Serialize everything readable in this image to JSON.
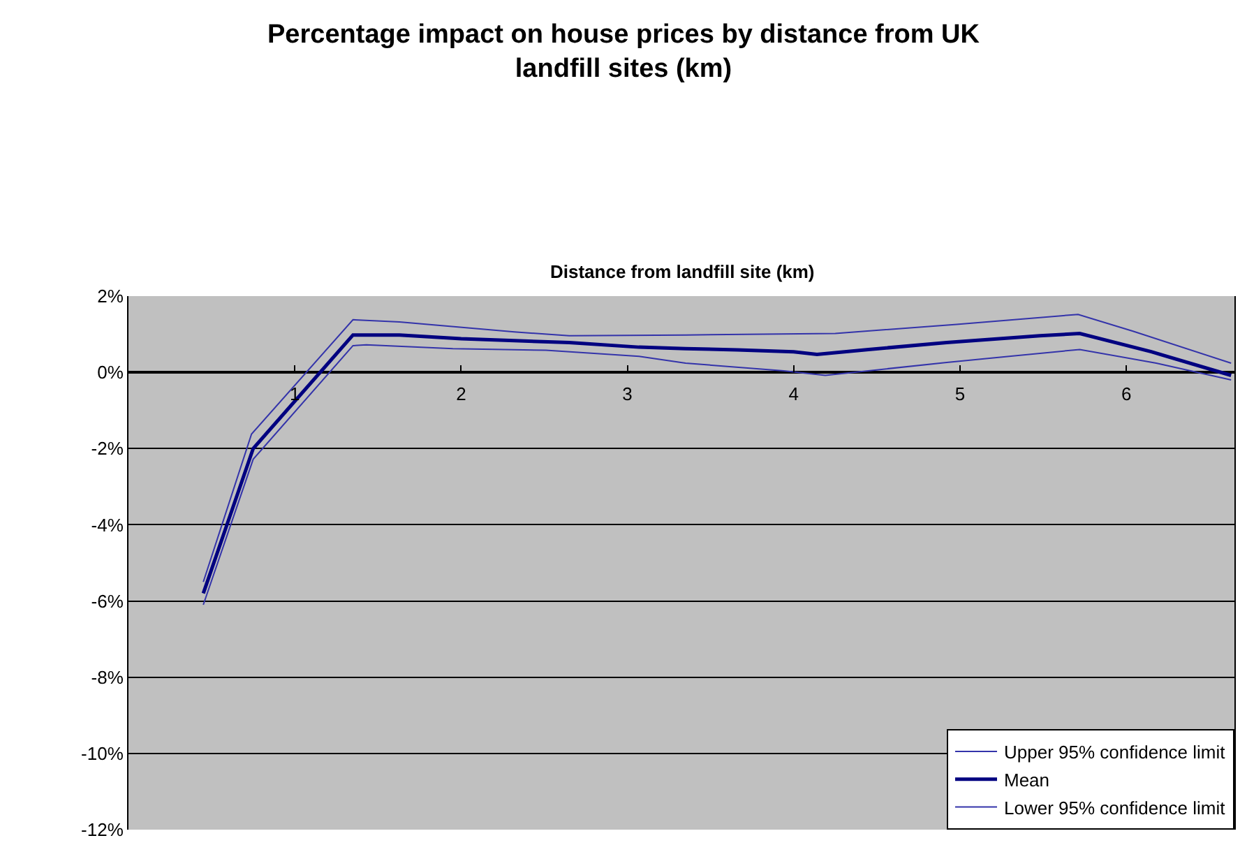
{
  "chart_data": {
    "type": "line",
    "title": "Percentage impact on house prices by distance from UK landfill sites (km)",
    "xlabel": "Distance from landfill site (km)",
    "xlim": [
      0,
      6.65
    ],
    "xticks": [
      1,
      2,
      3,
      4,
      5,
      6
    ],
    "ylim": [
      -12,
      2
    ],
    "yticks": [
      {
        "value": 2,
        "label": "2%"
      },
      {
        "value": 0,
        "label": "0%"
      },
      {
        "value": -2,
        "label": "-2%"
      },
      {
        "value": -4,
        "label": "-4%"
      },
      {
        "value": -6,
        "label": "-6%"
      },
      {
        "value": -8,
        "label": "-8%"
      },
      {
        "value": -10,
        "label": "-10%"
      },
      {
        "value": -12,
        "label": "-12%"
      }
    ],
    "grid": "y",
    "legend": "bottom right",
    "series": [
      {
        "name": "Upper 95% confidence limit",
        "color": "#3333aa",
        "x": [
          0.45,
          0.74,
          1.35,
          1.63,
          2.32,
          2.65,
          3.35,
          4.25,
          4.98,
          5.71,
          6.04,
          6.63
        ],
        "values": [
          -5.5,
          -1.62,
          1.38,
          1.32,
          1.06,
          0.96,
          0.98,
          1.02,
          1.26,
          1.52,
          1.08,
          0.24
        ]
      },
      {
        "name": "Mean",
        "color": "#000080",
        "x": [
          0.45,
          0.75,
          1.35,
          1.63,
          2.0,
          2.32,
          2.65,
          3.07,
          3.35,
          3.66,
          4.0,
          4.14,
          4.45,
          4.92,
          5.48,
          5.72,
          6.15,
          6.63
        ],
        "values": [
          -5.8,
          -2.0,
          0.98,
          0.98,
          0.88,
          0.83,
          0.78,
          0.66,
          0.62,
          0.59,
          0.54,
          0.47,
          0.6,
          0.78,
          0.96,
          1.02,
          0.54,
          -0.08
        ]
      },
      {
        "name": "Lower 95% confidence limit",
        "color": "#3333aa",
        "x": [
          0.45,
          0.75,
          1.35,
          1.43,
          1.95,
          2.51,
          3.07,
          3.35,
          3.94,
          4.19,
          4.92,
          5.72,
          6.18,
          6.63
        ],
        "values": [
          -6.1,
          -2.28,
          0.7,
          0.72,
          0.62,
          0.58,
          0.42,
          0.24,
          0.04,
          -0.08,
          0.26,
          0.6,
          0.24,
          -0.2
        ]
      }
    ]
  }
}
